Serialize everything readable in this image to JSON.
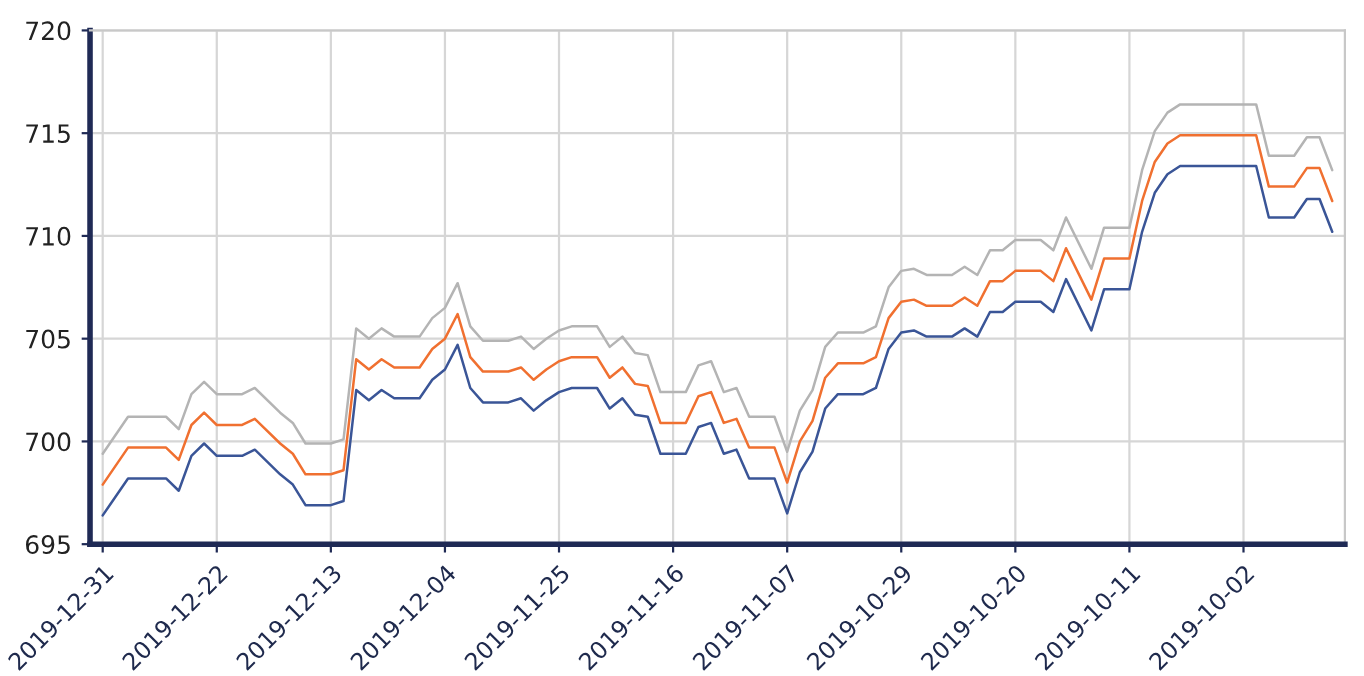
{
  "chart_data": {
    "type": "line",
    "x": [
      "2019-12-31",
      "2019-12-29",
      "2019-12-26",
      "2019-12-25",
      "2019-12-24",
      "2019-12-23",
      "2019-12-22",
      "2019-12-20",
      "2019-12-19",
      "2019-12-17",
      "2019-12-16",
      "2019-12-15",
      "2019-12-13",
      "2019-12-12",
      "2019-12-11",
      "2019-12-10",
      "2019-12-09",
      "2019-12-08",
      "2019-12-06",
      "2019-12-05",
      "2019-12-04",
      "2019-12-03",
      "2019-12-02",
      "2019-12-01",
      "2019-11-29",
      "2019-11-28",
      "2019-11-27",
      "2019-11-26",
      "2019-11-25",
      "2019-11-24",
      "2019-11-22",
      "2019-11-21",
      "2019-11-20",
      "2019-11-19",
      "2019-11-18",
      "2019-11-17",
      "2019-11-15",
      "2019-11-14",
      "2019-11-13",
      "2019-11-12",
      "2019-11-11",
      "2019-11-10",
      "2019-11-08",
      "2019-11-07",
      "2019-11-06",
      "2019-11-05",
      "2019-11-04",
      "2019-11-03",
      "2019-11-01",
      "2019-10-31",
      "2019-10-30",
      "2019-10-29",
      "2019-10-28",
      "2019-10-27",
      "2019-10-25",
      "2019-10-24",
      "2019-10-23",
      "2019-10-22",
      "2019-10-21",
      "2019-10-20",
      "2019-10-18",
      "2019-10-17",
      "2019-10-16",
      "2019-10-14",
      "2019-10-13",
      "2019-10-11",
      "2019-10-10",
      "2019-10-09",
      "2019-10-08",
      "2019-10-07",
      "2019-10-01",
      "2019-09-30",
      "2019-09-28",
      "2019-09-27",
      "2019-09-26",
      "2019-09-25"
    ],
    "series": [
      {
        "color": "#b4b4b4",
        "values": [
          699.4,
          701.2,
          701.2,
          700.6,
          702.3,
          702.9,
          702.3,
          702.3,
          702.6,
          701.4,
          700.9,
          699.9,
          699.9,
          700.1,
          705.5,
          705.0,
          705.5,
          705.1,
          705.1,
          706.0,
          706.5,
          707.7,
          705.6,
          704.9,
          704.9,
          705.1,
          704.5,
          705.0,
          705.4,
          705.6,
          705.6,
          704.6,
          705.1,
          704.3,
          704.2,
          702.4,
          702.4,
          703.7,
          703.9,
          702.4,
          702.6,
          701.2,
          701.2,
          699.5,
          701.5,
          702.5,
          704.6,
          705.3,
          705.3,
          705.6,
          707.5,
          708.3,
          708.4,
          708.1,
          708.1,
          708.5,
          708.1,
          709.3,
          709.3,
          709.8,
          709.8,
          709.3,
          710.9,
          708.4,
          710.4,
          710.4,
          713.2,
          715.1,
          716.0,
          716.4,
          716.4,
          713.9,
          713.9,
          714.8,
          714.8,
          713.2
        ]
      },
      {
        "color": "#f07030",
        "values": [
          697.9,
          699.7,
          699.7,
          699.1,
          700.8,
          701.4,
          700.8,
          700.8,
          701.1,
          699.9,
          699.4,
          698.4,
          698.4,
          698.6,
          704.0,
          703.5,
          704.0,
          703.6,
          703.6,
          704.5,
          705.0,
          706.2,
          704.1,
          703.4,
          703.4,
          703.6,
          703.0,
          703.5,
          703.9,
          704.1,
          704.1,
          703.1,
          703.6,
          702.8,
          702.7,
          700.9,
          700.9,
          702.2,
          702.4,
          700.9,
          701.1,
          699.7,
          699.7,
          698.0,
          700.0,
          701.0,
          703.1,
          703.8,
          703.8,
          704.1,
          706.0,
          706.8,
          706.9,
          706.6,
          706.6,
          707.0,
          706.6,
          707.8,
          707.8,
          708.3,
          708.3,
          707.8,
          709.4,
          706.9,
          708.9,
          708.9,
          711.7,
          713.6,
          714.5,
          714.9,
          714.9,
          712.4,
          712.4,
          713.3,
          713.3,
          711.7
        ]
      },
      {
        "color": "#3a5597",
        "values": [
          696.4,
          698.2,
          698.2,
          697.6,
          699.3,
          699.9,
          699.3,
          699.3,
          699.6,
          698.4,
          697.9,
          696.9,
          696.9,
          697.1,
          702.5,
          702.0,
          702.5,
          702.1,
          702.1,
          703.0,
          703.5,
          704.7,
          702.6,
          701.9,
          701.9,
          702.1,
          701.5,
          702.0,
          702.4,
          702.6,
          702.6,
          701.6,
          702.1,
          701.3,
          701.2,
          699.4,
          699.4,
          700.7,
          700.9,
          699.4,
          699.6,
          698.2,
          698.2,
          696.5,
          698.5,
          699.5,
          701.6,
          702.3,
          702.3,
          702.6,
          704.5,
          705.3,
          705.4,
          705.1,
          705.1,
          705.5,
          705.1,
          706.3,
          706.3,
          706.8,
          706.8,
          706.3,
          707.9,
          705.4,
          707.4,
          707.4,
          710.2,
          712.1,
          713.0,
          713.4,
          713.4,
          710.9,
          710.9,
          711.8,
          711.8,
          710.2
        ]
      }
    ],
    "xlim": [
      "2020-01-01",
      "2019-09-24"
    ],
    "xticks": [
      "2019-12-31",
      "2019-12-22",
      "2019-12-13",
      "2019-12-04",
      "2019-11-25",
      "2019-11-16",
      "2019-11-07",
      "2019-10-29",
      "2019-10-20",
      "2019-10-11",
      "2019-10-02"
    ],
    "ylim": [
      695,
      720
    ],
    "yticks": [
      695,
      700,
      705,
      710,
      715,
      720
    ],
    "grid": true,
    "marker": "none",
    "line_style": "solid"
  }
}
